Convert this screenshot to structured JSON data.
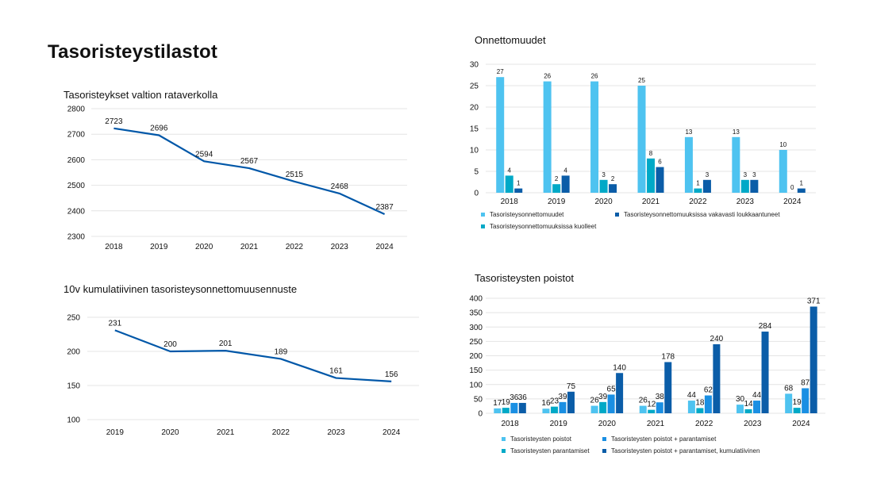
{
  "page": {
    "title": "Tasoristeystilastot"
  },
  "colors": {
    "line": "#0057A8",
    "light_blue": "#4EC3F0",
    "teal": "#00A9C7",
    "blue": "#1A8FE3",
    "dark_blue": "#0B5DA8",
    "grid": "#e4e4e4"
  },
  "chart_data": [
    {
      "id": "crossings",
      "type": "line",
      "title": "Tasoristeykset valtion rataverkolla",
      "x": [
        "2018",
        "2019",
        "2020",
        "2021",
        "2022",
        "2023",
        "2024"
      ],
      "values": [
        2723,
        2696,
        2594,
        2567,
        2515,
        2468,
        2387
      ],
      "ylim": [
        2300,
        2800
      ],
      "yticks": [
        2300,
        2400,
        2500,
        2600,
        2700,
        2800
      ],
      "grid": true
    },
    {
      "id": "forecast",
      "type": "line",
      "title": "10v kumulatiivinen tasoristeysonnettomuusennuste",
      "x": [
        "2019",
        "2020",
        "2021",
        "2022",
        "2023",
        "2024"
      ],
      "values": [
        231,
        200,
        201,
        189,
        161,
        156
      ],
      "ylim": [
        100,
        250
      ],
      "yticks": [
        100,
        150,
        200,
        250
      ],
      "grid": true
    },
    {
      "id": "accidents",
      "type": "bar",
      "title": "Onnettomuudet",
      "categories": [
        "2018",
        "2019",
        "2020",
        "2021",
        "2022",
        "2023",
        "2024"
      ],
      "series": [
        {
          "name": "Tasoristeysonnettomuudet",
          "values": [
            27,
            26,
            26,
            25,
            13,
            13,
            10
          ]
        },
        {
          "name": "Tasoristeysonnettomuuksissa kuolleet",
          "values": [
            4,
            2,
            3,
            8,
            1,
            3,
            0
          ]
        },
        {
          "name": "Tasoristeysonnettomuuksissa vakavasti loukkaantuneet",
          "values": [
            1,
            4,
            2,
            6,
            3,
            3,
            1
          ]
        }
      ],
      "ylim": [
        0,
        30
      ],
      "yticks": [
        0,
        5,
        10,
        15,
        20,
        25,
        30
      ],
      "grid": true,
      "legend": "bottom"
    },
    {
      "id": "removals",
      "type": "bar",
      "title": "Tasoristeysten poistot",
      "categories": [
        "2018",
        "2019",
        "2020",
        "2021",
        "2022",
        "2023",
        "2024"
      ],
      "series": [
        {
          "name": "Tasoristeysten poistot",
          "values": [
            17,
            16,
            26,
            26,
            44,
            30,
            68
          ]
        },
        {
          "name": "Tasoristeysten parantamiset",
          "values": [
            19,
            23,
            39,
            12,
            18,
            14,
            19
          ]
        },
        {
          "name": "Tasoristeysten poistot + parantamiset",
          "values": [
            36,
            39,
            65,
            38,
            62,
            44,
            87
          ]
        },
        {
          "name": "Tasoristeysten poistot + parantamiset, kumulatiivinen",
          "values": [
            36,
            75,
            140,
            178,
            240,
            284,
            371
          ]
        }
      ],
      "ylim": [
        0,
        400
      ],
      "yticks": [
        0,
        50,
        100,
        150,
        200,
        250,
        300,
        350,
        400
      ],
      "grid": true,
      "legend": "bottom"
    }
  ]
}
